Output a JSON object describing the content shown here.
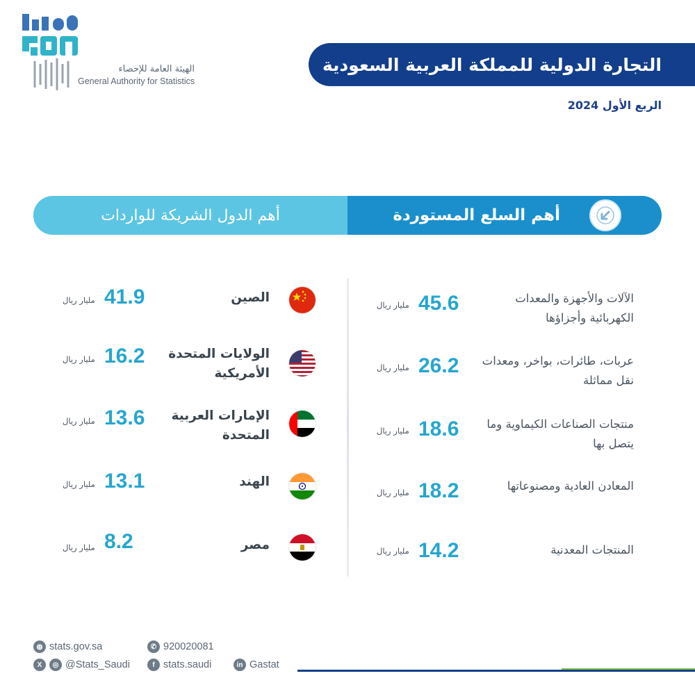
{
  "brand": {
    "logo_text_top": "وس",
    "logo_text_bottom": "SAA",
    "name_ar": "الهيئة العامة للإحصاء",
    "name_en": "General Authority for Statistics"
  },
  "title": "التجارة الدولية للمملكة العربية السعودية",
  "period": "الربع الأول 2024",
  "headers": {
    "goods": "أهم السلع المستوردة",
    "countries": "أهم الدول الشريكة للواردات",
    "goods_icon": "arrow-down-left-icon"
  },
  "unit": "مليار ريال",
  "goods": [
    {
      "label": "الآلات والأجهزة والمعدات الكهربائية وأجزاؤها",
      "value": "45.6"
    },
    {
      "label": "عربات، طائرات، بواخر، ومعدات نقل مماثلة",
      "value": "26.2"
    },
    {
      "label": "منتجات الصناعات الكيماوية وما يتصل بها",
      "value": "18.6"
    },
    {
      "label": "المعادن العادية ومصنوعاتها",
      "value": "18.2"
    },
    {
      "label": "المنتجات المعدنية",
      "value": "14.2"
    }
  ],
  "countries": [
    {
      "name": "الصين",
      "value": "41.9",
      "flag": "china-flag-icon"
    },
    {
      "name": "الولايات المتحدة الأمريكية",
      "value": "16.2",
      "flag": "usa-flag-icon"
    },
    {
      "name": "الإمارات العربية المتحدة",
      "value": "13.6",
      "flag": "uae-flag-icon"
    },
    {
      "name": "الهند",
      "value": "13.1",
      "flag": "india-flag-icon"
    },
    {
      "name": "مصر",
      "value": "8.2",
      "flag": "egypt-flag-icon"
    }
  ],
  "footer": {
    "website": "stats.gov.sa",
    "phone": "920020081",
    "social": "@Stats_Saudi",
    "facebook": "stats.saudi",
    "linkedin": "Gastat"
  },
  "colors": {
    "title_bg": "#123e8b",
    "header_goods_bg": "#1a8fcc",
    "header_countries_bg": "#5cc5e3",
    "value": "#25a6cf"
  }
}
